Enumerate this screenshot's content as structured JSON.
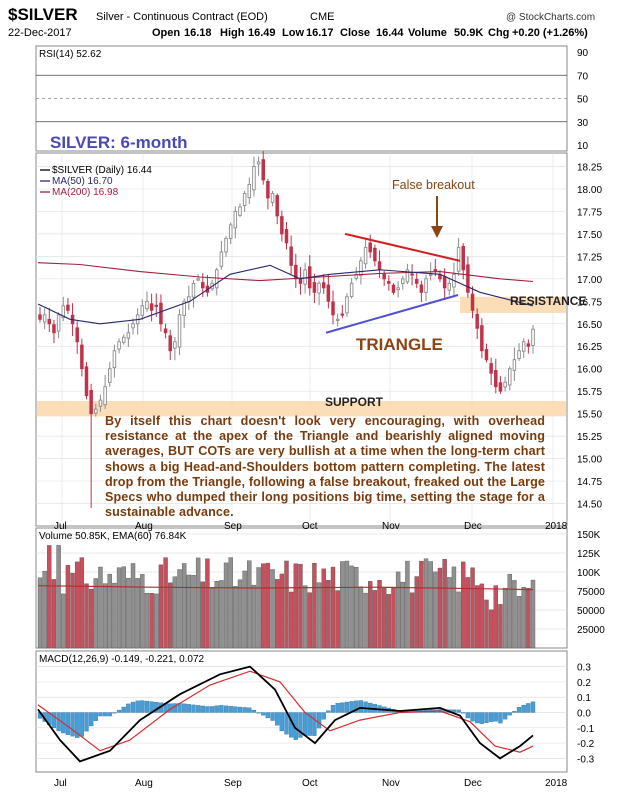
{
  "header": {
    "symbol": "$SILVER",
    "description": "Silver - Continuous Contract (EOD)",
    "exchange": "CME",
    "date": "22-Dec-2017",
    "open_label": "Open",
    "open": "16.18",
    "high_label": "High",
    "high": "16.49",
    "low_label": "Low",
    "low": "16.17",
    "close_label": "Close",
    "close": "16.44",
    "volume_label": "Volume",
    "volume": "50.9K",
    "chg_label": "Chg",
    "chg": "+0.20 (+1.26%)",
    "copyright": "@ StockCharts.com"
  },
  "rsi_panel": {
    "label": "RSI(14) 52.62",
    "ticks": [
      "90",
      "70",
      "50",
      "30",
      "10"
    ]
  },
  "price_panel": {
    "title": "SILVER: 6-month",
    "legend": [
      "$SILVER (Daily) 16.44",
      "MA(50) 16.70",
      "MA(200) 16.98"
    ],
    "y_ticks": [
      "18.25",
      "18.00",
      "17.75",
      "17.50",
      "17.25",
      "17.00",
      "16.75",
      "16.50",
      "16.25",
      "16.00",
      "15.75",
      "15.50",
      "15.25",
      "15.00",
      "14.75",
      "14.50"
    ],
    "annotations": {
      "false_breakout": "False breakout",
      "resistance": "RESISTANCE",
      "triangle": "TRIANGLE",
      "support": "SUPPORT"
    },
    "commentary": "By itself this chart doesn't look very encouraging, with overhead resistance at the apex of the Triangle and bearishly aligned moving averages, BUT COTs are very bullish at a time when the long-term chart shows a big Head-and-Shoulders bottom pattern completing. The latest drop from the Triangle, following a false breakout, freaked out the Large Specs who dumped their long positions big time, setting the stage for a sustainable advance."
  },
  "volume_panel": {
    "label": "Volume 50.85K, EMA(60) 76.84K",
    "y_ticks": [
      "150K",
      "125K",
      "100K",
      "75000",
      "50000",
      "25000"
    ]
  },
  "macd_panel": {
    "label": "MACD(12,26,9) -0.149, -0.221, 0.072",
    "y_ticks": [
      "0.3",
      "0.2",
      "0.1",
      "0.0",
      "-0.1",
      "-0.2",
      "-0.3"
    ]
  },
  "x_labels": [
    "Jul",
    "Aug",
    "Sep",
    "Oct",
    "Nov",
    "Dec",
    "2018"
  ],
  "colors": {
    "up": "#8c8c8c",
    "down": "#c0324a",
    "ma50": "#28286e",
    "ma200": "#a02040",
    "band": "#fbd9b0",
    "title": "#4a4ab4",
    "annotation": "#8b4513",
    "trendline_red": "#d02020",
    "trendline_blue": "#5050d0",
    "macd_hist": "#4a9cd4"
  },
  "chart_data": {
    "type": "candlestick",
    "period": "daily",
    "x_range": [
      "Jun-2017",
      "Dec-2017"
    ],
    "ohlc_last": {
      "open": 16.18,
      "high": 16.49,
      "low": 16.17,
      "close": 16.44
    },
    "price_ylim": [
      14.25,
      18.4
    ],
    "close_path": [
      16.55,
      16.6,
      16.5,
      16.4,
      16.6,
      16.7,
      16.65,
      16.5,
      16.3,
      16.0,
      15.7,
      15.5,
      15.55,
      15.65,
      15.8,
      16.0,
      16.2,
      16.3,
      16.35,
      16.4,
      16.5,
      16.6,
      16.7,
      16.75,
      16.65,
      16.7,
      16.5,
      16.4,
      16.2,
      16.3,
      16.6,
      16.75,
      16.8,
      16.95,
      17.0,
      16.9,
      16.85,
      16.95,
      17.1,
      17.3,
      17.45,
      17.6,
      17.75,
      17.8,
      17.95,
      18.05,
      18.25,
      18.3,
      18.1,
      17.9,
      17.95,
      17.7,
      17.5,
      17.4,
      17.15,
      17.0,
      16.95,
      17.1,
      16.9,
      16.85,
      16.95,
      16.9,
      16.75,
      16.6,
      16.55,
      16.6,
      16.8,
      16.95,
      17.05,
      17.2,
      17.35,
      17.3,
      17.2,
      17.1,
      17.0,
      16.95,
      16.85,
      16.9,
      17.0,
      17.1,
      17.05,
      16.95,
      16.85,
      17.0,
      17.05,
      17.1,
      17.0,
      16.9,
      16.95,
      17.05,
      17.35,
      17.1,
      16.85,
      16.65,
      16.45,
      16.2,
      16.1,
      15.95,
      15.8,
      15.75,
      15.85,
      16.0,
      16.1,
      16.2,
      16.3,
      16.25,
      16.44
    ],
    "ma50": {
      "name": "MA(50)",
      "last": 16.7
    },
    "ma200": {
      "name": "MA(200)",
      "last": 16.98
    },
    "levels": {
      "support": [
        15.47,
        15.64
      ],
      "resistance": [
        16.62,
        16.8
      ]
    },
    "rsi": {
      "name": "RSI(14)",
      "last": 52.62,
      "ylim": [
        10,
        90
      ]
    },
    "volume": {
      "name": "Volume",
      "last": "50.85K",
      "ema60": "76.84K",
      "ylim": [
        0,
        150000
      ]
    },
    "macd": {
      "name": "MACD(12,26,9)",
      "macd": -0.149,
      "signal": -0.221,
      "histogram": 0.072,
      "ylim": [
        -0.3,
        0.3
      ]
    }
  }
}
